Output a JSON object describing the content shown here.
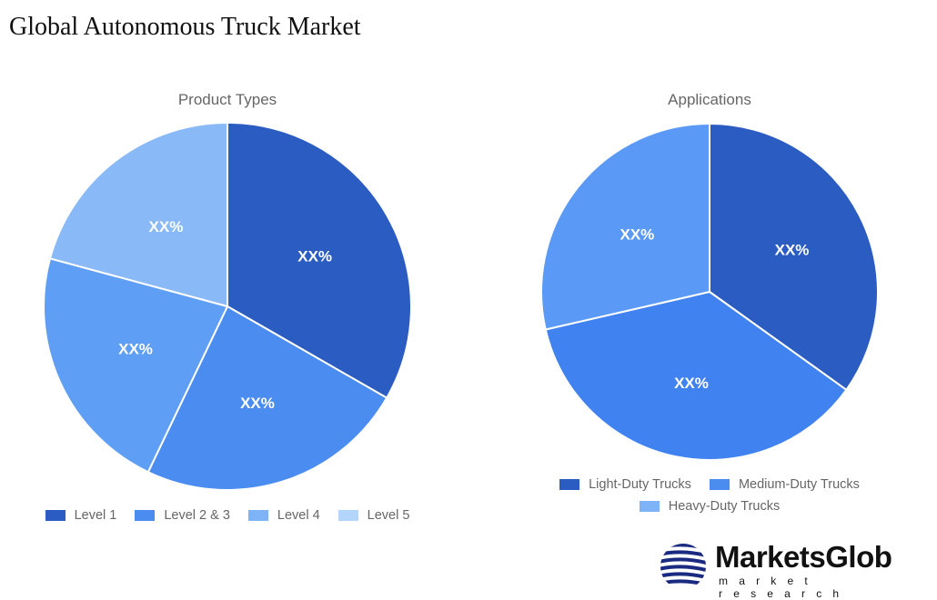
{
  "page_title": "Global Autonomous Truck Market",
  "logo": {
    "name": "MarketsGlob",
    "tagline": "market research"
  },
  "chart_data": [
    {
      "type": "pie",
      "title": "Product Types",
      "categories": [
        "Level 1",
        "Level 2 & 3",
        "Level 4",
        "Level 5"
      ],
      "values": [
        33.3,
        23.8,
        22.1,
        20.8
      ],
      "labels": [
        "XX%",
        "XX%",
        "XX%",
        "XX%"
      ],
      "colors": [
        "#2b5cc2",
        "#4a8cf0",
        "#5f9ef5",
        "#8ab9f8"
      ],
      "legend_colors": [
        "#2b5cc2",
        "#4a8cf0",
        "#7fb3f7",
        "#b3d4fb"
      ],
      "legend": "bottom"
    },
    {
      "type": "pie",
      "title": "Applications",
      "categories": [
        "Light-Duty Trucks",
        "Medium-Duty Trucks",
        "Heavy-Duty Trucks"
      ],
      "values": [
        34.9,
        36.5,
        28.6
      ],
      "labels": [
        "XX%",
        "XX%",
        "XX%"
      ],
      "colors": [
        "#2b5cc2",
        "#3f82f0",
        "#5a9af6"
      ],
      "legend_colors": [
        "#2b5cc2",
        "#4a8cf0",
        "#7fb3f7"
      ],
      "legend": "bottom"
    }
  ]
}
